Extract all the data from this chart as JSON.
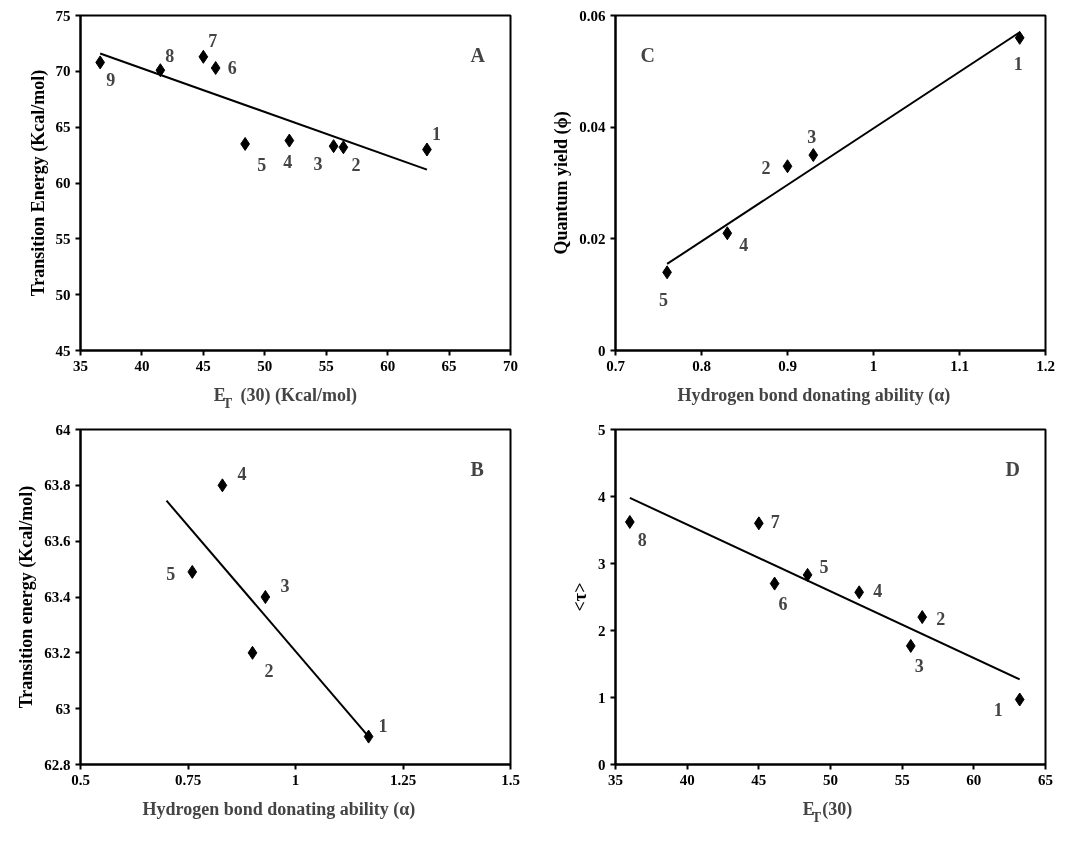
{
  "chart_data": [
    {
      "type": "scatter",
      "title": "A",
      "xlabel": "E$_{T}$ (30) (Kcal/mol)",
      "ylabel": "Transition Energy (Kcal/mol)",
      "xlim": [
        35,
        70
      ],
      "xticks": [
        35,
        40,
        45,
        50,
        55,
        60,
        65,
        70
      ],
      "ylim": [
        45,
        75
      ],
      "yticks": [
        45,
        50,
        55,
        60,
        65,
        70,
        75
      ],
      "grid": false,
      "series": [
        {
          "marker": "diamond",
          "color": "#000000",
          "x": [
            63.2,
            56.4,
            55.6,
            52,
            48.4,
            46,
            45,
            41.5,
            36.6
          ],
          "values": [
            63.0,
            63.2,
            63.3,
            63.8,
            63.5,
            70.3,
            71.3,
            70.1,
            70.8
          ]
        },
        {
          "type": "line",
          "marker": "none",
          "color": "#000000",
          "x": [
            36.6,
            63.2
          ],
          "values": [
            71.6,
            61.2
          ]
        }
      ],
      "annotations": [
        {
          "text": "1",
          "x": 63.2,
          "y": 63.0
        },
        {
          "text": "2",
          "x": 56.4,
          "y": 63.2
        },
        {
          "text": "3",
          "x": 55.6,
          "y": 63.3
        },
        {
          "text": "4",
          "x": 52,
          "y": 63.8
        },
        {
          "text": "5",
          "x": 48.4,
          "y": 63.5
        },
        {
          "text": "6",
          "x": 46,
          "y": 70.3
        },
        {
          "text": "7",
          "x": 45,
          "y": 71.3
        },
        {
          "text": "8",
          "x": 41.5,
          "y": 70.1
        },
        {
          "text": "9",
          "x": 36.6,
          "y": 70.8
        }
      ]
    },
    {
      "type": "scatter",
      "title": "C",
      "xlabel": "Hydrogen bond donating ability (α)",
      "ylabel": "Quantum yield (ϕ)",
      "xlim": [
        0.7,
        1.2
      ],
      "xticks": [
        0.7,
        0.8,
        0.9,
        1,
        1.1,
        1.2
      ],
      "ylim": [
        0,
        0.06
      ],
      "yticks": [
        0,
        0.02,
        0.04,
        0.06
      ],
      "grid": false,
      "series": [
        {
          "marker": "diamond",
          "color": "#000000",
          "x": [
            1.17,
            0.9,
            0.93,
            0.83,
            0.76
          ],
          "values": [
            0.056,
            0.033,
            0.035,
            0.021,
            0.014
          ]
        },
        {
          "type": "line",
          "marker": "none",
          "color": "#000000",
          "x": [
            0.76,
            1.17
          ],
          "values": [
            0.0155,
            0.057
          ]
        }
      ],
      "annotations": [
        {
          "text": "1",
          "x": 1.17,
          "y": 0.056
        },
        {
          "text": "2",
          "x": 0.9,
          "y": 0.033
        },
        {
          "text": "3",
          "x": 0.93,
          "y": 0.035
        },
        {
          "text": "4",
          "x": 0.83,
          "y": 0.021
        },
        {
          "text": "5",
          "x": 0.76,
          "y": 0.014
        }
      ]
    },
    {
      "type": "scatter",
      "title": "B",
      "xlabel": "Hydrogen bond donating ability (α)",
      "ylabel": "Transition energy (Kcal/mol)",
      "xlim": [
        0.5,
        1.5
      ],
      "xticks": [
        0.5,
        0.75,
        1,
        1.25,
        1.5
      ],
      "ylim": [
        62.8,
        64
      ],
      "yticks": [
        62.8,
        63,
        63.2,
        63.4,
        63.6,
        63.8,
        64
      ],
      "grid": false,
      "series": [
        {
          "marker": "diamond",
          "color": "#000000",
          "x": [
            1.17,
            0.9,
            0.93,
            0.83,
            0.76
          ],
          "values": [
            62.9,
            63.2,
            63.4,
            63.8,
            63.49
          ]
        },
        {
          "type": "line",
          "marker": "none",
          "color": "#000000",
          "x": [
            0.7,
            1.17
          ],
          "values": [
            63.745,
            62.9
          ]
        }
      ],
      "annotations": [
        {
          "text": "1",
          "x": 1.17,
          "y": 62.9
        },
        {
          "text": "2",
          "x": 0.9,
          "y": 63.2
        },
        {
          "text": "3",
          "x": 0.93,
          "y": 63.4
        },
        {
          "text": "4",
          "x": 0.83,
          "y": 63.8
        },
        {
          "text": "5",
          "x": 0.76,
          "y": 63.49
        }
      ]
    },
    {
      "type": "scatter",
      "title": "D",
      "xlabel": "E$_{T}$(30)",
      "ylabel": "<τ>",
      "xlim": [
        35,
        65
      ],
      "xticks": [
        35,
        40,
        45,
        50,
        55,
        60,
        65
      ],
      "ylim": [
        0,
        5
      ],
      "yticks": [
        0,
        1,
        2,
        3,
        4,
        5
      ],
      "grid": false,
      "series": [
        {
          "marker": "diamond",
          "color": "#000000",
          "x": [
            63.2,
            56.4,
            55.6,
            52,
            48.4,
            46.1,
            45,
            36
          ],
          "values": [
            0.97,
            2.2,
            1.77,
            2.57,
            2.83,
            2.7,
            3.6,
            3.62
          ]
        },
        {
          "type": "line",
          "marker": "none",
          "color": "#000000",
          "x": [
            36,
            63.2
          ],
          "values": [
            3.98,
            1.27
          ]
        }
      ],
      "annotations": [
        {
          "text": "1",
          "x": 63.2,
          "y": 0.97
        },
        {
          "text": "2",
          "x": 56.4,
          "y": 2.2
        },
        {
          "text": "3",
          "x": 55.6,
          "y": 1.77
        },
        {
          "text": "4",
          "x": 52,
          "y": 2.57
        },
        {
          "text": "5",
          "x": 48.4,
          "y": 2.83
        },
        {
          "text": "6",
          "x": 46.1,
          "y": 2.7
        },
        {
          "text": "7",
          "x": 45,
          "y": 3.6
        },
        {
          "text": "8",
          "x": 36,
          "y": 3.62
        }
      ]
    }
  ]
}
